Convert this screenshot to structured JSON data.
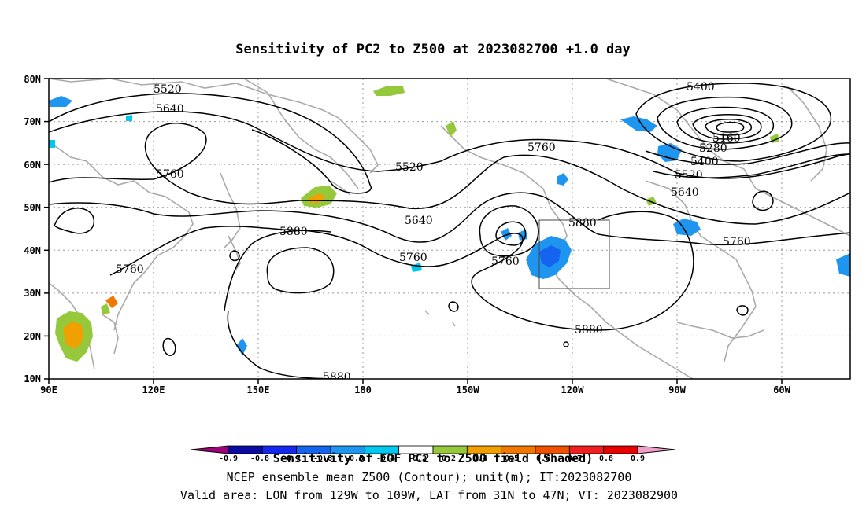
{
  "title": "Sensitivity of PC2 to Z500 at 2023082700 +1.0 day",
  "axes": {
    "lat_labels": [
      "80N",
      "70N",
      "60N",
      "50N",
      "40N",
      "30N",
      "20N",
      "10N"
    ],
    "lon_labels": [
      "90E",
      "120E",
      "150E",
      "180",
      "150W",
      "120W",
      "90W",
      "60W"
    ]
  },
  "contour_labels": [
    "5520",
    "5640",
    "5760",
    "5880",
    "5760",
    "5520",
    "5640",
    "5760",
    "5760",
    "5880",
    "5880",
    "5880",
    "5400",
    "5160",
    "5280",
    "5400",
    "5520",
    "5640",
    "5760",
    "5880"
  ],
  "colorbar": {
    "tick_labels": [
      "-0.9",
      "-0.8",
      "-0.7",
      "-0.6",
      "-0.5",
      "-0.4",
      "-0.2",
      "0.2",
      "0.4",
      "0.5",
      "0.6",
      "0.7",
      "0.8",
      "0.9"
    ],
    "colors": [
      "#a0007a",
      "#0a0aa0",
      "#1428f0",
      "#1464f0",
      "#1e96f0",
      "#00c8f0",
      "#ffffff",
      "#96c83c",
      "#f0a000",
      "#f07800",
      "#f05000",
      "#f01e1e",
      "#e60000",
      "#f0a0c8"
    ]
  },
  "captions": {
    "line1": "Sensitivity of EOF PC2 to Z500 field (Shaded)",
    "line2": "NCEP ensemble mean Z500 (Contour); unit(m); IT:2023082700",
    "line3": "Valid area: LON from 129W to 109W, LAT from 31N to 47N; VT: 2023082900"
  },
  "valid_area": {
    "lon_from": "129W",
    "lon_to": "109W",
    "lat_from": "31N",
    "lat_to": "47N"
  }
}
